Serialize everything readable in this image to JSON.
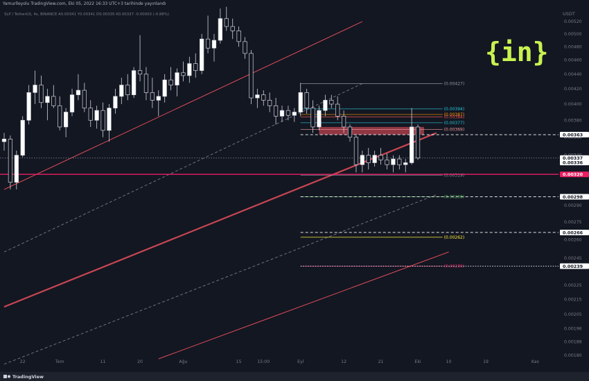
{
  "header": {
    "text": "Yamurlleyolu TradingView.com, Eki 05, 2022 16:33 UTC+3 tarihinde yayınlandı",
    "pair_line": "SLP / TetherUS, 4s, BINANCE  A0.00341  Y0.00341  D0.00335  K0.00337  -0.00003 (-0.88%)"
  },
  "footer": {
    "brand": "TradingView"
  },
  "watermark": {
    "text": "{in}",
    "color": "#c8f250"
  },
  "chart_data": {
    "type": "candlestick",
    "title": "SLP / TetherUS, 4s, BINANCE",
    "currency": "USDT",
    "ylim": [
      0.0018,
      0.0054
    ],
    "y_scale": "log",
    "y_ticks": [
      {
        "value": 0.0052,
        "label": "0.00520"
      },
      {
        "value": 0.005,
        "label": "0.00500"
      },
      {
        "value": 0.0048,
        "label": "0.00480"
      },
      {
        "value": 0.0046,
        "label": "0.00460"
      },
      {
        "value": 0.0044,
        "label": "0.00440"
      },
      {
        "value": 0.0042,
        "label": "0.00420"
      },
      {
        "value": 0.004,
        "label": "0.00400"
      },
      {
        "value": 0.0038,
        "label": "0.00380"
      },
      {
        "value": 0.0036,
        "label": "0.00360"
      },
      {
        "value": 0.0034,
        "label": "0.00340"
      },
      {
        "value": 0.0032,
        "label": "0.00320"
      },
      {
        "value": 0.0029,
        "label": "0.00290"
      },
      {
        "value": 0.00275,
        "label": "0.00275"
      },
      {
        "value": 0.0026,
        "label": "0.00260"
      },
      {
        "value": 0.00245,
        "label": "0.00245"
      },
      {
        "value": 0.00225,
        "label": "0.00225"
      },
      {
        "value": 0.00215,
        "label": "0.00215"
      },
      {
        "value": 0.00205,
        "label": "0.00205"
      },
      {
        "value": 0.00196,
        "label": "0.00196"
      },
      {
        "value": 0.00188,
        "label": "0.00188"
      },
      {
        "value": 0.0018,
        "label": "0.00180"
      }
    ],
    "x_ticks": [
      {
        "label": "22",
        "index": 3
      },
      {
        "label": "Tem",
        "index": 9
      },
      {
        "label": "11",
        "index": 16
      },
      {
        "label": "20",
        "index": 22
      },
      {
        "label": "Ağu",
        "index": 29
      },
      {
        "label": "15",
        "index": 38
      },
      {
        "label": "15:00",
        "index": 42
      },
      {
        "label": "Eyl",
        "index": 48
      },
      {
        "label": "12",
        "index": 55
      },
      {
        "label": "21",
        "index": 61
      },
      {
        "label": "Eki",
        "index": 67
      },
      {
        "label": "10",
        "index": 72
      },
      {
        "label": "19",
        "index": 78
      },
      {
        "label": "Kas",
        "index": 86
      }
    ],
    "candles": [
      {
        "o": 0.00355,
        "h": 0.00365,
        "l": 0.00345,
        "c": 0.00358
      },
      {
        "o": 0.00358,
        "h": 0.00362,
        "l": 0.00305,
        "c": 0.00312
      },
      {
        "o": 0.00312,
        "h": 0.00345,
        "l": 0.00305,
        "c": 0.0034
      },
      {
        "o": 0.0034,
        "h": 0.00385,
        "l": 0.00338,
        "c": 0.0038
      },
      {
        "o": 0.0038,
        "h": 0.00425,
        "l": 0.00375,
        "c": 0.00415
      },
      {
        "o": 0.00415,
        "h": 0.00445,
        "l": 0.004,
        "c": 0.00425
      },
      {
        "o": 0.00425,
        "h": 0.00438,
        "l": 0.00395,
        "c": 0.00402
      },
      {
        "o": 0.00402,
        "h": 0.0042,
        "l": 0.0038,
        "c": 0.0041
      },
      {
        "o": 0.0041,
        "h": 0.00425,
        "l": 0.00395,
        "c": 0.00398
      },
      {
        "o": 0.00398,
        "h": 0.0041,
        "l": 0.00368,
        "c": 0.00372
      },
      {
        "o": 0.00372,
        "h": 0.00395,
        "l": 0.0036,
        "c": 0.0039
      },
      {
        "o": 0.0039,
        "h": 0.0042,
        "l": 0.00385,
        "c": 0.00412
      },
      {
        "o": 0.00412,
        "h": 0.0044,
        "l": 0.00405,
        "c": 0.00418
      },
      {
        "o": 0.00418,
        "h": 0.00428,
        "l": 0.0039,
        "c": 0.00395
      },
      {
        "o": 0.00395,
        "h": 0.00405,
        "l": 0.00372,
        "c": 0.0038
      },
      {
        "o": 0.0038,
        "h": 0.00398,
        "l": 0.0037,
        "c": 0.00392
      },
      {
        "o": 0.00392,
        "h": 0.00402,
        "l": 0.0036,
        "c": 0.00368
      },
      {
        "o": 0.00368,
        "h": 0.004,
        "l": 0.00355,
        "c": 0.00395
      },
      {
        "o": 0.00395,
        "h": 0.0042,
        "l": 0.00388,
        "c": 0.0041
      },
      {
        "o": 0.0041,
        "h": 0.00435,
        "l": 0.004,
        "c": 0.00425
      },
      {
        "o": 0.00425,
        "h": 0.0044,
        "l": 0.00405,
        "c": 0.00412
      },
      {
        "o": 0.00412,
        "h": 0.0045,
        "l": 0.00408,
        "c": 0.00445
      },
      {
        "o": 0.00445,
        "h": 0.00498,
        "l": 0.0043,
        "c": 0.0044
      },
      {
        "o": 0.0044,
        "h": 0.0045,
        "l": 0.00405,
        "c": 0.00415
      },
      {
        "o": 0.00415,
        "h": 0.00435,
        "l": 0.00395,
        "c": 0.00405
      },
      {
        "o": 0.00405,
        "h": 0.00418,
        "l": 0.00385,
        "c": 0.0041
      },
      {
        "o": 0.0041,
        "h": 0.0044,
        "l": 0.00402,
        "c": 0.00432
      },
      {
        "o": 0.00432,
        "h": 0.0045,
        "l": 0.00418,
        "c": 0.00425
      },
      {
        "o": 0.00425,
        "h": 0.00448,
        "l": 0.0041,
        "c": 0.00442
      },
      {
        "o": 0.00442,
        "h": 0.00458,
        "l": 0.0043,
        "c": 0.00438
      },
      {
        "o": 0.00438,
        "h": 0.00465,
        "l": 0.00428,
        "c": 0.00455
      },
      {
        "o": 0.00455,
        "h": 0.0047,
        "l": 0.00435,
        "c": 0.00445
      },
      {
        "o": 0.00445,
        "h": 0.005,
        "l": 0.0044,
        "c": 0.00492
      },
      {
        "o": 0.00492,
        "h": 0.0053,
        "l": 0.0047,
        "c": 0.00478
      },
      {
        "o": 0.00478,
        "h": 0.005,
        "l": 0.00458,
        "c": 0.0049
      },
      {
        "o": 0.0049,
        "h": 0.00542,
        "l": 0.00485,
        "c": 0.00525
      },
      {
        "o": 0.00525,
        "h": 0.00545,
        "l": 0.00505,
        "c": 0.00512
      },
      {
        "o": 0.00512,
        "h": 0.00525,
        "l": 0.00492,
        "c": 0.00505
      },
      {
        "o": 0.00505,
        "h": 0.00512,
        "l": 0.0048,
        "c": 0.00488
      },
      {
        "o": 0.00488,
        "h": 0.00495,
        "l": 0.00462,
        "c": 0.0047
      },
      {
        "o": 0.0047,
        "h": 0.00475,
        "l": 0.004,
        "c": 0.00408
      },
      {
        "o": 0.00408,
        "h": 0.0042,
        "l": 0.00395,
        "c": 0.00412
      },
      {
        "o": 0.00412,
        "h": 0.00418,
        "l": 0.00398,
        "c": 0.00405
      },
      {
        "o": 0.00405,
        "h": 0.00415,
        "l": 0.0039,
        "c": 0.00398
      },
      {
        "o": 0.00398,
        "h": 0.00408,
        "l": 0.00375,
        "c": 0.00385
      },
      {
        "o": 0.00385,
        "h": 0.00398,
        "l": 0.00378,
        "c": 0.00392
      },
      {
        "o": 0.00392,
        "h": 0.00398,
        "l": 0.0038,
        "c": 0.00386
      },
      {
        "o": 0.00386,
        "h": 0.00395,
        "l": 0.00378,
        "c": 0.0039
      },
      {
        "o": 0.0039,
        "h": 0.00428,
        "l": 0.00385,
        "c": 0.00415
      },
      {
        "o": 0.00415,
        "h": 0.0042,
        "l": 0.00388,
        "c": 0.00395
      },
      {
        "o": 0.00395,
        "h": 0.00405,
        "l": 0.00365,
        "c": 0.00372
      },
      {
        "o": 0.00372,
        "h": 0.00398,
        "l": 0.00368,
        "c": 0.00392
      },
      {
        "o": 0.00392,
        "h": 0.00412,
        "l": 0.00385,
        "c": 0.00405
      },
      {
        "o": 0.00405,
        "h": 0.00412,
        "l": 0.00395,
        "c": 0.004
      },
      {
        "o": 0.004,
        "h": 0.0041,
        "l": 0.0038,
        "c": 0.00385
      },
      {
        "o": 0.00385,
        "h": 0.00392,
        "l": 0.00365,
        "c": 0.00372
      },
      {
        "o": 0.00372,
        "h": 0.00375,
        "l": 0.00355,
        "c": 0.0036
      },
      {
        "o": 0.0036,
        "h": 0.00362,
        "l": 0.00322,
        "c": 0.0033
      },
      {
        "o": 0.0033,
        "h": 0.00345,
        "l": 0.00322,
        "c": 0.0034
      },
      {
        "o": 0.0034,
        "h": 0.00348,
        "l": 0.00325,
        "c": 0.00332
      },
      {
        "o": 0.00332,
        "h": 0.00345,
        "l": 0.00328,
        "c": 0.0034
      },
      {
        "o": 0.0034,
        "h": 0.00348,
        "l": 0.0033,
        "c": 0.00335
      },
      {
        "o": 0.00335,
        "h": 0.00342,
        "l": 0.00325,
        "c": 0.0033
      },
      {
        "o": 0.0033,
        "h": 0.0034,
        "l": 0.00322,
        "c": 0.00336
      },
      {
        "o": 0.00336,
        "h": 0.0034,
        "l": 0.00325,
        "c": 0.0033
      },
      {
        "o": 0.0033,
        "h": 0.00336,
        "l": 0.00322,
        "c": 0.00332
      },
      {
        "o": 0.00332,
        "h": 0.00395,
        "l": 0.0033,
        "c": 0.00372
      },
      {
        "o": 0.00372,
        "h": 0.00375,
        "l": 0.00335,
        "c": 0.00337
      }
    ],
    "horizontal_levels": [
      {
        "value": 0.00363,
        "label": "0.00363",
        "style": "dashed",
        "color": "#ffffff",
        "tag_bg": "#ffffff",
        "tag_fg": "#131722"
      },
      {
        "value": 0.00337,
        "label": "0.00337",
        "sublabel": "04:26:02",
        "style": "dotted",
        "color": "#787b86",
        "tag_bg": "#ffffff",
        "tag_fg": "#131722"
      },
      {
        "value": 0.00336,
        "label": "0.00336",
        "style": "none",
        "color": "#787b86",
        "tag_bg": "#ffffff",
        "tag_fg": "#131722"
      },
      {
        "value": 0.0032,
        "label": "0.00320",
        "style": "solid",
        "color": "#e91e63",
        "tag_bg": "#e91e63",
        "tag_fg": "#ffffff"
      },
      {
        "value": 0.00298,
        "label": "0.00298",
        "style": "dashed",
        "color": "#ffffff",
        "tag_bg": "#ffffff",
        "tag_fg": "#131722"
      },
      {
        "value": 0.00266,
        "label": "0.00266",
        "style": "dashed",
        "color": "#ffffff",
        "tag_bg": "#ffffff",
        "tag_fg": "#131722"
      },
      {
        "value": 0.00239,
        "label": "0.00239",
        "style": "dotted",
        "color": "#ffffff",
        "tag_bg": "#ffffff",
        "tag_fg": "#131722"
      }
    ],
    "fib_levels": [
      {
        "value": 0.00427,
        "label": "(0.00427)",
        "color": "#9598a1"
      },
      {
        "value": 0.00394,
        "label": "(0.00394)",
        "color": "#26c6da"
      },
      {
        "value": 0.00387,
        "label": "(0.00387)",
        "color": "#ff9800"
      },
      {
        "value": 0.00384,
        "label": "(0.00384)",
        "color": "#ef5350"
      },
      {
        "value": 0.00377,
        "label": "(0.00377)",
        "color": "#26c6da"
      },
      {
        "value": 0.00369,
        "label": "(0.00369)",
        "color": "#ef9a9a"
      },
      {
        "value": 0.00319,
        "label": "(0.00319)",
        "color": "#9598a1"
      },
      {
        "value": 0.00298,
        "label": "(0.00298)",
        "color": "#4caf50"
      },
      {
        "value": 0.00262,
        "label": "(0.00262)",
        "color": "#ffeb3b"
      },
      {
        "value": 0.00239,
        "label": "(0.00239)",
        "color": "#e91e63"
      }
    ],
    "zone": {
      "from": 0.00363,
      "to": 0.00372,
      "color": "#f7525f"
    },
    "channels": [
      {
        "type": "solid",
        "color": "#f7525f",
        "p1": [
          0,
          0.00305
        ],
        "p2": [
          58,
          0.0052
        ]
      },
      {
        "type": "dashed",
        "color": "#787b86",
        "p1": [
          0,
          0.0025
        ],
        "p2": [
          58,
          0.00427
        ]
      },
      {
        "type": "thick",
        "color": "#f7525f",
        "p1": [
          0,
          0.0021
        ],
        "p2": [
          70,
          0.00365
        ]
      },
      {
        "type": "dashed",
        "color": "#787b86",
        "p1": [
          0,
          0.00175
        ],
        "p2": [
          70,
          0.003
        ]
      },
      {
        "type": "solid",
        "color": "#f7525f",
        "p1": [
          25,
          0.00178
        ],
        "p2": [
          72,
          0.0025
        ]
      }
    ],
    "grid": false
  }
}
